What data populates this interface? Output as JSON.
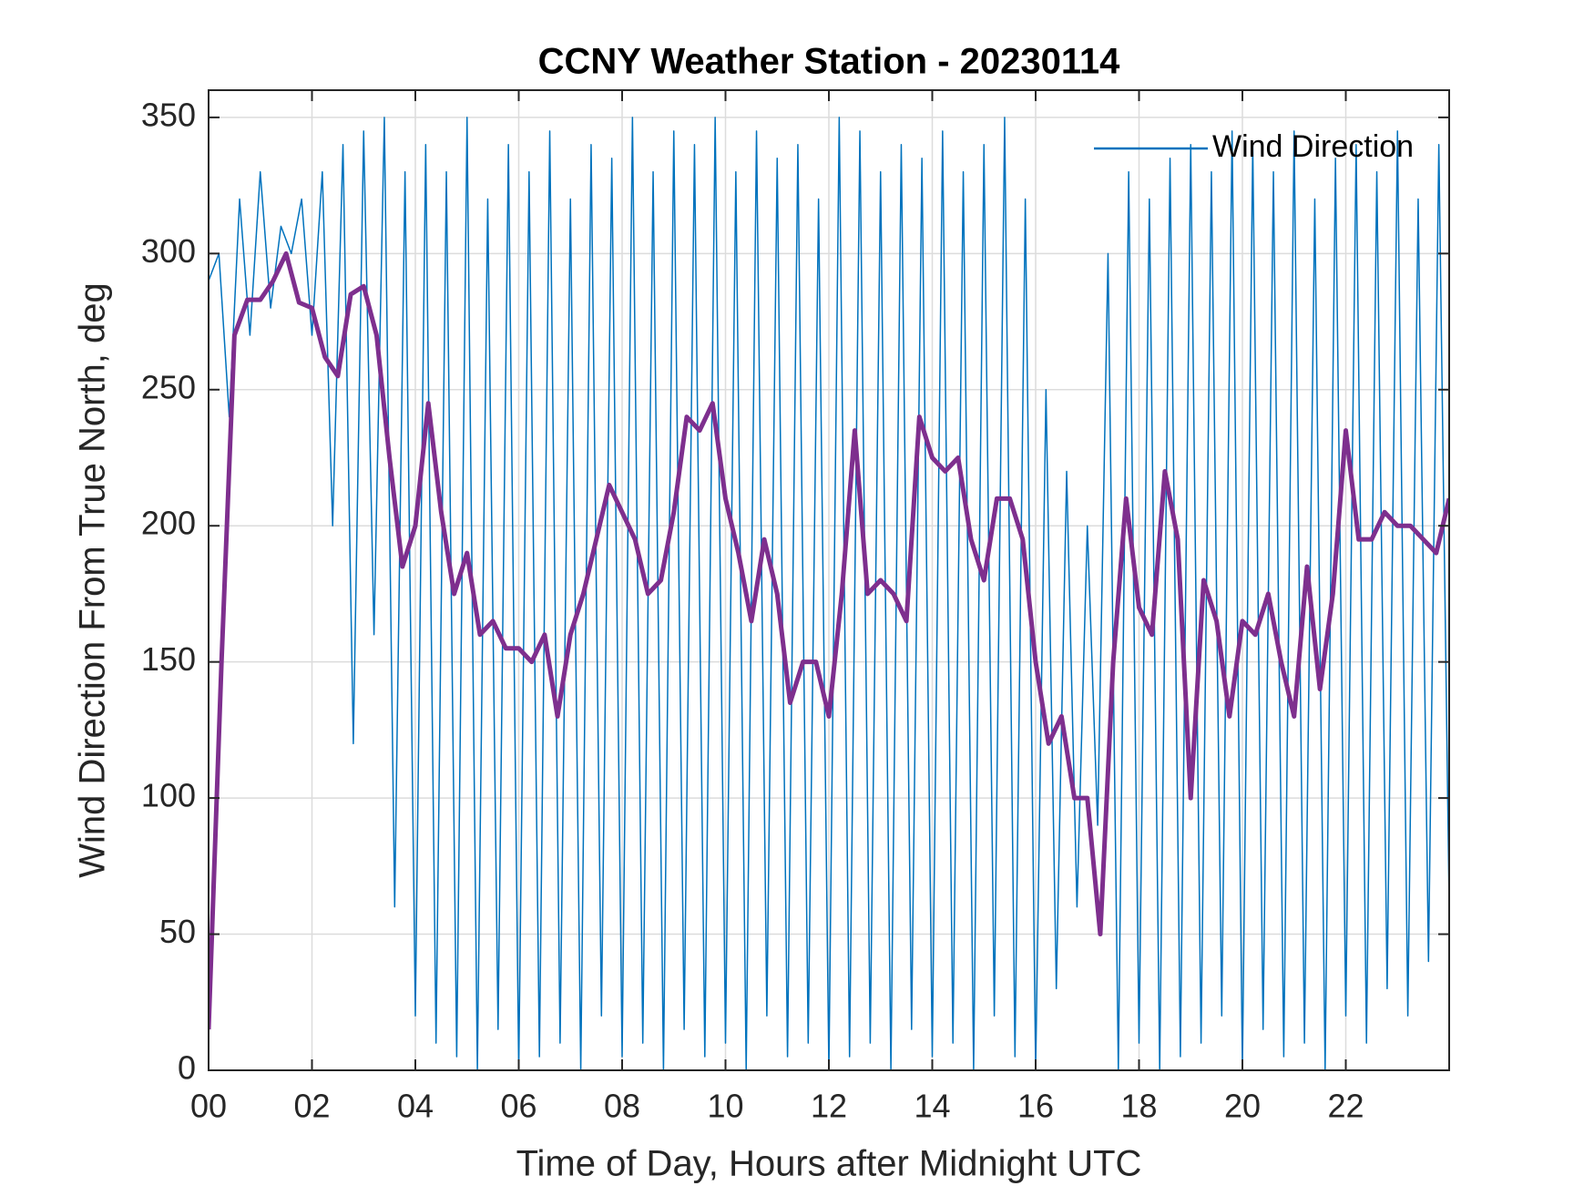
{
  "chart_data": {
    "type": "line",
    "title": "CCNY Weather Station - 20230114",
    "xlabel": "Time of Day, Hours after Midnight UTC",
    "ylabel": "Wind Direction From True North, deg",
    "xlim": [
      0,
      24
    ],
    "xticks": [
      {
        "value": 0,
        "label": "00"
      },
      {
        "value": 2,
        "label": "02"
      },
      {
        "value": 4,
        "label": "04"
      },
      {
        "value": 6,
        "label": "06"
      },
      {
        "value": 8,
        "label": "08"
      },
      {
        "value": 10,
        "label": "10"
      },
      {
        "value": 12,
        "label": "12"
      },
      {
        "value": 14,
        "label": "14"
      },
      {
        "value": 16,
        "label": "16"
      },
      {
        "value": 18,
        "label": "18"
      },
      {
        "value": 20,
        "label": "20"
      },
      {
        "value": 22,
        "label": "22"
      }
    ],
    "ylim": [
      0,
      360
    ],
    "yticks": [
      0,
      50,
      100,
      150,
      200,
      250,
      300,
      350
    ],
    "grid": true,
    "legend": "upper right",
    "series": [
      {
        "name": "Wind Direction",
        "color": "#0072bd",
        "x": [
          0,
          0.2,
          0.4,
          0.6,
          0.8,
          1,
          1.2,
          1.4,
          1.6,
          1.8,
          2,
          2.2,
          2.4,
          2.6,
          2.8,
          3,
          3.2,
          3.4,
          3.6,
          3.8,
          4,
          4.2,
          4.4,
          4.6,
          4.8,
          5,
          5.2,
          5.4,
          5.6,
          5.8,
          6,
          6.2,
          6.4,
          6.6,
          6.8,
          7,
          7.2,
          7.4,
          7.6,
          7.8,
          8,
          8.2,
          8.4,
          8.6,
          8.8,
          9,
          9.2,
          9.4,
          9.6,
          9.8,
          10,
          10.2,
          10.4,
          10.6,
          10.8,
          11,
          11.2,
          11.4,
          11.6,
          11.8,
          12,
          12.2,
          12.4,
          12.6,
          12.8,
          13,
          13.2,
          13.4,
          13.6,
          13.8,
          14,
          14.2,
          14.4,
          14.6,
          14.8,
          15,
          15.2,
          15.4,
          15.6,
          15.8,
          16,
          16.2,
          16.4,
          16.6,
          16.8,
          17,
          17.2,
          17.4,
          17.6,
          17.8,
          18,
          18.2,
          18.4,
          18.6,
          18.8,
          19,
          19.2,
          19.4,
          19.6,
          19.8,
          20,
          20.2,
          20.4,
          20.6,
          20.8,
          21,
          21.2,
          21.4,
          21.6,
          21.8,
          22,
          22.2,
          22.4,
          22.6,
          22.8,
          23,
          23.2,
          23.4,
          23.6,
          23.8,
          24
        ],
        "values": [
          290,
          300,
          240,
          320,
          270,
          330,
          280,
          310,
          300,
          320,
          270,
          330,
          200,
          340,
          120,
          345,
          160,
          350,
          60,
          330,
          20,
          340,
          10,
          330,
          5,
          350,
          0,
          320,
          15,
          340,
          0,
          330,
          5,
          345,
          10,
          320,
          0,
          340,
          20,
          335,
          5,
          350,
          10,
          330,
          0,
          345,
          15,
          340,
          5,
          350,
          10,
          330,
          0,
          345,
          20,
          335,
          5,
          340,
          10,
          320,
          0,
          350,
          5,
          345,
          10,
          330,
          0,
          340,
          15,
          335,
          5,
          345,
          10,
          330,
          0,
          340,
          20,
          350,
          5,
          320,
          0,
          250,
          30,
          220,
          60,
          200,
          90,
          300,
          0,
          330,
          10,
          320,
          0,
          335,
          5,
          340,
          10,
          330,
          20,
          345,
          0,
          340,
          15,
          330,
          5,
          345,
          10,
          320,
          0,
          335,
          20,
          340,
          10,
          330,
          30,
          345,
          20,
          320,
          40,
          340,
          60
        ]
      },
      {
        "color": "#7e2f8e",
        "x": [
          0,
          0.25,
          0.5,
          0.75,
          1,
          1.25,
          1.5,
          1.75,
          2,
          2.25,
          2.5,
          2.75,
          3,
          3.25,
          3.5,
          3.75,
          4,
          4.25,
          4.5,
          4.75,
          5,
          5.25,
          5.5,
          5.75,
          6,
          6.25,
          6.5,
          6.75,
          7,
          7.25,
          7.5,
          7.75,
          8,
          8.25,
          8.5,
          8.75,
          9,
          9.25,
          9.5,
          9.75,
          10,
          10.25,
          10.5,
          10.75,
          11,
          11.25,
          11.5,
          11.75,
          12,
          12.25,
          12.5,
          12.75,
          13,
          13.25,
          13.5,
          13.75,
          14,
          14.25,
          14.5,
          14.75,
          15,
          15.25,
          15.5,
          15.75,
          16,
          16.25,
          16.5,
          16.75,
          17,
          17.25,
          17.5,
          17.75,
          18,
          18.25,
          18.5,
          18.75,
          19,
          19.25,
          19.5,
          19.75,
          20,
          20.25,
          20.5,
          20.75,
          21,
          21.25,
          21.5,
          21.75,
          22,
          22.25,
          22.5,
          22.75,
          23,
          23.25,
          23.5,
          23.75,
          24
        ],
        "values": [
          15,
          150,
          270,
          283,
          283,
          290,
          300,
          282,
          280,
          262,
          255,
          285,
          288,
          270,
          225,
          185,
          200,
          245,
          205,
          175,
          190,
          160,
          165,
          155,
          155,
          150,
          160,
          130,
          160,
          175,
          195,
          215,
          205,
          195,
          175,
          180,
          205,
          240,
          235,
          245,
          210,
          190,
          165,
          195,
          175,
          135,
          150,
          150,
          130,
          175,
          235,
          175,
          180,
          175,
          165,
          240,
          225,
          220,
          225,
          195,
          180,
          210,
          210,
          195,
          150,
          120,
          130,
          100,
          100,
          50,
          150,
          210,
          170,
          160,
          220,
          195,
          100,
          180,
          165,
          130,
          165,
          160,
          175,
          150,
          130,
          185,
          140,
          175,
          235,
          195,
          195,
          205,
          200,
          200,
          195,
          190,
          210
        ]
      }
    ]
  }
}
